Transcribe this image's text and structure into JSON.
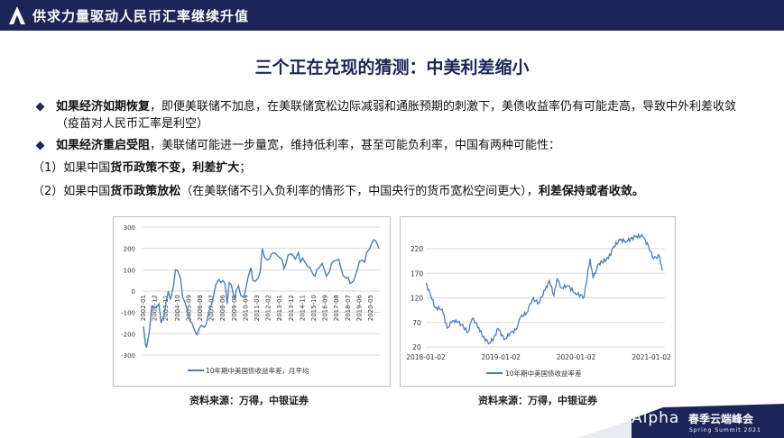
{
  "header": {
    "title": "供求力量驱动人民币汇率继续升值",
    "logo_icon": "alpha-triangle-logo"
  },
  "main_title": "三个正在兑现的猜测：中美利差缩小",
  "bullets": [
    {
      "bold": "如果经济如期恢复",
      "text": "，即便美联储不加息，在美联储宽松边际减弱和通胀预期的刺激下，美债收益率仍有可能走高，导致中外利差收敛（疫苗对人民币汇率是利空）"
    },
    {
      "bold": "如果经济重启受阻",
      "text": "，美联储可能进一步量宽，维持低利率，甚至可能负利率，中国有两种可能性："
    }
  ],
  "cases": [
    {
      "prefix": "（1）如果中国",
      "bold1": "货币政策不变，利差扩大",
      "tail": "；",
      "mid": "",
      "bold2": ""
    },
    {
      "prefix": "（2）如果中国",
      "bold1": "货币政策放松",
      "mid": "（在美联储不引入负利率的情形下，中国央行的货币宽松空间更大），",
      "bold2": "利差保持或者收敛。",
      "tail": ""
    }
  ],
  "sources": [
    "资料来源：万得，中银证券",
    "资料来源：万得，中银证券"
  ],
  "footer": {
    "brand": "Alpha",
    "event": "春季云端峰会",
    "subtitle": "Spring Summit 2021"
  },
  "colors": {
    "navy": "#1b2557",
    "line": "#4a7ebb",
    "grid": "#d9d9d9"
  },
  "chart_data": [
    {
      "type": "line",
      "title": "",
      "legend": "10年期中美国债收益率差，月平均",
      "legend_position": "bottom",
      "grid": true,
      "ylim": [
        -300,
        300
      ],
      "yticks": [
        300,
        200,
        100,
        0,
        -100,
        -200,
        -300
      ],
      "xtick_labels": [
        "2002-01",
        "2002-12",
        "2003-11",
        "2004-10",
        "2005-09",
        "2006-08",
        "2007-07",
        "2008-06",
        "2009-05",
        "2010-04",
        "2011-03",
        "2012-02",
        "2013-01",
        "2013-12",
        "2014-11",
        "2015-10",
        "2016-09",
        "2017-08",
        "2018-07",
        "2019-06",
        "2020-05"
      ],
      "series": [
        {
          "x": [
            "2002-01",
            "2002-03",
            "2002-04",
            "2002-07",
            "2002-09",
            "2002-11",
            "2003-02",
            "2003-04",
            "2003-06",
            "2003-09",
            "2003-11",
            "2004-01",
            "2004-03",
            "2004-06",
            "2004-08",
            "2004-10",
            "2005-01",
            "2005-03",
            "2005-05",
            "2005-08",
            "2005-10",
            "2005-12",
            "2006-03",
            "2006-05",
            "2006-07",
            "2006-09",
            "2006-12",
            "2007-02",
            "2007-04",
            "2007-07",
            "2007-09",
            "2007-11",
            "2008-02",
            "2008-04",
            "2008-06",
            "2008-08",
            "2008-10",
            "2008-12",
            "2009-02",
            "2009-05",
            "2009-07",
            "2009-09",
            "2009-11",
            "2010-02",
            "2010-04",
            "2010-06",
            "2010-09",
            "2010-11",
            "2011-01",
            "2011-04",
            "2011-06",
            "2011-08",
            "2011-10",
            "2012-01",
            "2012-03",
            "2012-05",
            "2012-08",
            "2012-10",
            "2012-12",
            "2013-03",
            "2013-05",
            "2013-07",
            "2013-09",
            "2013-12",
            "2014-02",
            "2014-04",
            "2014-07",
            "2014-09",
            "2014-11",
            "2015-02",
            "2015-04",
            "2015-06",
            "2015-09",
            "2015-11",
            "2016-01",
            "2016-03",
            "2016-06",
            "2016-08",
            "2016-10",
            "2017-01",
            "2017-03",
            "2017-05",
            "2017-08",
            "2017-10",
            "2017-12",
            "2018-02",
            "2018-05",
            "2018-07",
            "2018-09",
            "2018-12",
            "2019-02",
            "2019-04",
            "2019-06",
            "2019-09",
            "2019-11",
            "2020-01",
            "2020-04",
            "2020-06",
            "2020-08",
            "2020-10",
            "2021-01"
          ],
          "y": [
            -165,
            -250,
            -265,
            -180,
            -70,
            -80,
            -75,
            -60,
            -150,
            -110,
            -50,
            0,
            -40,
            20,
            100,
            95,
            60,
            -30,
            -50,
            -100,
            -140,
            -150,
            -190,
            -205,
            -175,
            -160,
            -170,
            -150,
            -100,
            -60,
            -20,
            30,
            55,
            40,
            50,
            35,
            -60,
            40,
            30,
            -40,
            5,
            25,
            -20,
            -30,
            10,
            60,
            110,
            50,
            45,
            60,
            90,
            200,
            160,
            145,
            150,
            175,
            180,
            170,
            160,
            150,
            105,
            130,
            170,
            175,
            165,
            150,
            180,
            135,
            155,
            130,
            115,
            110,
            80,
            70,
            100,
            110,
            130,
            100,
            70,
            90,
            130,
            140,
            145,
            150,
            110,
            75,
            60,
            65,
            35,
            45,
            70,
            100,
            140,
            145,
            135,
            180,
            200,
            225,
            240,
            235,
            200
          ]
        }
      ]
    },
    {
      "type": "line",
      "title": "",
      "legend": "10年期中美国债收益率差",
      "legend_position": "bottom",
      "grid": true,
      "ylim": [
        20,
        250
      ],
      "yticks": [
        20,
        70,
        120,
        170,
        220
      ],
      "xtick_labels": [
        "2018-01-02",
        "2019-01-02",
        "2020-01-02",
        "2021-01-02"
      ],
      "series": [
        {
          "x": [
            "2018-01-02",
            "2018-01-26",
            "2018-02-16",
            "2018-03-22",
            "2018-04-16",
            "2018-05-07",
            "2018-05-28",
            "2018-06-25",
            "2018-07-25",
            "2018-08-16",
            "2018-09-16",
            "2018-10-07",
            "2018-11-07",
            "2018-11-28",
            "2018-12-19",
            "2019-01-19",
            "2019-02-16",
            "2019-03-16",
            "2019-04-07",
            "2019-05-07",
            "2019-06-04",
            "2019-07-04",
            "2019-08-04",
            "2019-08-25",
            "2019-09-16",
            "2019-10-02",
            "2019-10-22",
            "2019-11-22",
            "2019-12-28",
            "2020-02-10",
            "2020-03-10",
            "2020-03-25",
            "2020-04-22",
            "2020-06-07",
            "2020-07-04",
            "2020-08-04",
            "2020-09-02",
            "2020-10-16",
            "2020-11-22",
            "2020-12-19",
            "2021-01-13",
            "2021-02-10",
            "2021-02-25"
          ],
          "y": [
            150,
            125,
            100,
            97,
            58,
            70,
            75,
            65,
            50,
            78,
            60,
            40,
            28,
            38,
            58,
            35,
            48,
            55,
            80,
            90,
            118,
            110,
            135,
            155,
            125,
            160,
            140,
            145,
            130,
            122,
            200,
            160,
            190,
            200,
            225,
            238,
            235,
            245,
            245,
            225,
            200,
            205,
            175
          ]
        }
      ]
    }
  ]
}
